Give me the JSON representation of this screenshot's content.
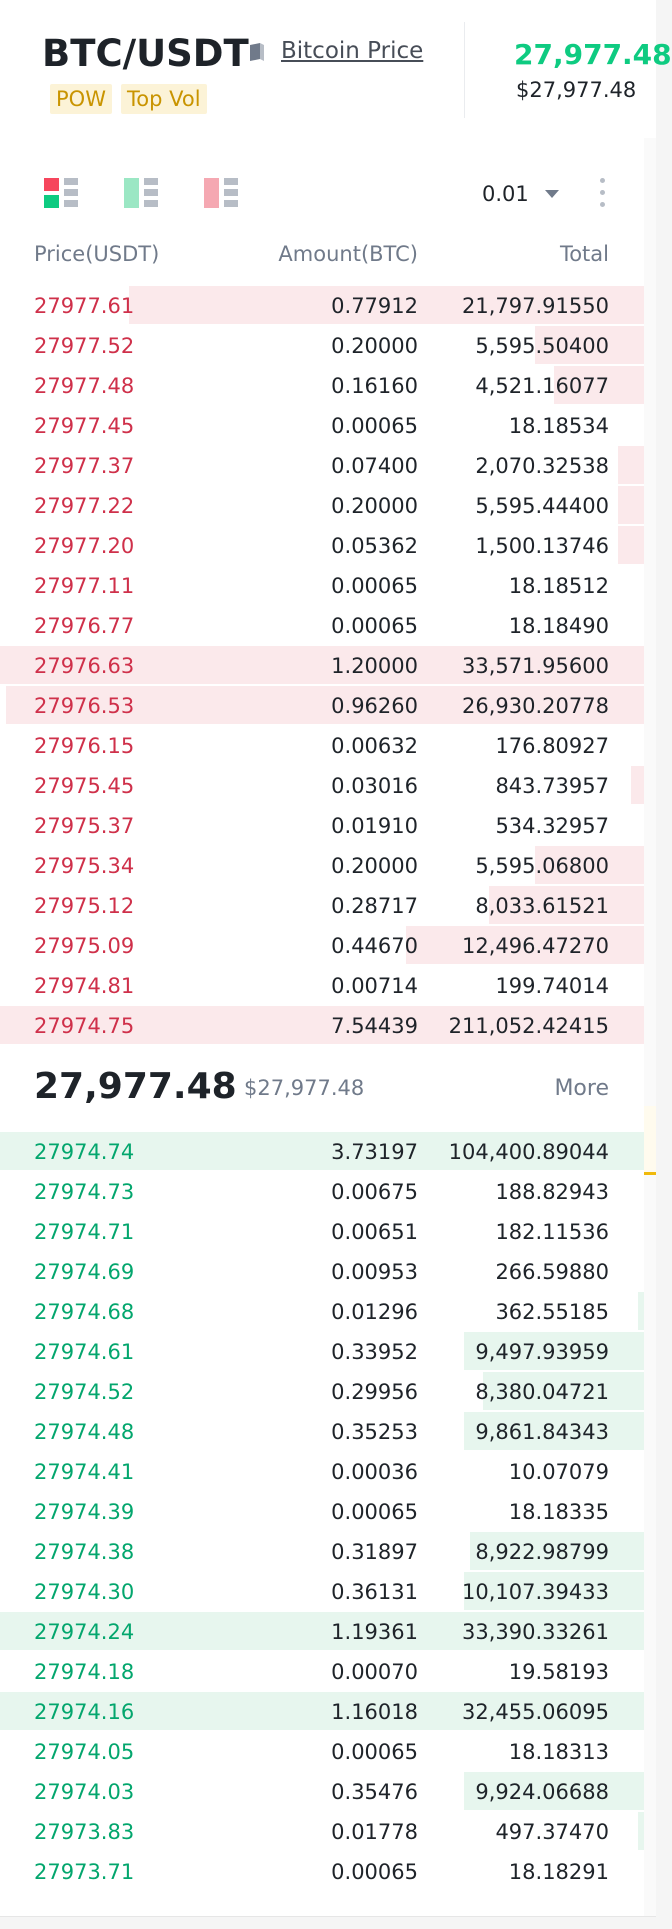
{
  "header": {
    "pair": "BTC/USDT",
    "price_link": "Bitcoin Price",
    "tags": [
      "POW",
      "Top Vol"
    ],
    "last_price": "27,977.48",
    "last_price_usd": "$27,977.48",
    "last_price_color": "#0ecb81"
  },
  "toolbar": {
    "precision": "0.01",
    "modes": [
      "both-sides-icon",
      "bids-only-icon",
      "asks-only-icon"
    ]
  },
  "columns": {
    "price": "Price(USDT)",
    "amount": "Amount(BTC)",
    "total": "Total"
  },
  "asks": [
    {
      "price": "27977.61",
      "amount": "0.77912",
      "total": "21,797.91550",
      "depth": 0.8
    },
    {
      "price": "27977.52",
      "amount": "0.20000",
      "total": "5,595.50400",
      "depth": 0.17
    },
    {
      "price": "27977.48",
      "amount": "0.16160",
      "total": "4,521.16077",
      "depth": 0.14
    },
    {
      "price": "27977.45",
      "amount": "0.00065",
      "total": "18.18534",
      "depth": 0.0
    },
    {
      "price": "27977.37",
      "amount": "0.07400",
      "total": "2,070.32538",
      "depth": 0.04
    },
    {
      "price": "27977.22",
      "amount": "0.20000",
      "total": "5,595.44400",
      "depth": 0.04
    },
    {
      "price": "27977.20",
      "amount": "0.05362",
      "total": "1,500.13746",
      "depth": 0.04
    },
    {
      "price": "27977.11",
      "amount": "0.00065",
      "total": "18.18512",
      "depth": 0.0
    },
    {
      "price": "27976.77",
      "amount": "0.00065",
      "total": "18.18490",
      "depth": 0.0
    },
    {
      "price": "27976.63",
      "amount": "1.20000",
      "total": "33,571.95600",
      "depth": 1.0
    },
    {
      "price": "27976.53",
      "amount": "0.96260",
      "total": "26,930.20778",
      "depth": 0.99
    },
    {
      "price": "27976.15",
      "amount": "0.00632",
      "total": "176.80927",
      "depth": 0.0
    },
    {
      "price": "27975.45",
      "amount": "0.03016",
      "total": "843.73957",
      "depth": 0.02
    },
    {
      "price": "27975.37",
      "amount": "0.01910",
      "total": "534.32957",
      "depth": 0.0
    },
    {
      "price": "27975.34",
      "amount": "0.20000",
      "total": "5,595.06800",
      "depth": 0.17
    },
    {
      "price": "27975.12",
      "amount": "0.28717",
      "total": "8,033.61521",
      "depth": 0.24
    },
    {
      "price": "27975.09",
      "amount": "0.44670",
      "total": "12,496.47270",
      "depth": 0.37
    },
    {
      "price": "27974.81",
      "amount": "0.00714",
      "total": "199.74014",
      "depth": 0.0
    },
    {
      "price": "27974.75",
      "amount": "7.54439",
      "total": "211,052.42415",
      "depth": 1.0
    }
  ],
  "mid": {
    "price": "27,977.48",
    "usd": "$27,977.48",
    "more_label": "More"
  },
  "bids": [
    {
      "price": "27974.74",
      "amount": "3.73197",
      "total": "104,400.89044",
      "depth": 1.0
    },
    {
      "price": "27974.73",
      "amount": "0.00675",
      "total": "188.82943",
      "depth": 0.0
    },
    {
      "price": "27974.71",
      "amount": "0.00651",
      "total": "182.11536",
      "depth": 0.0
    },
    {
      "price": "27974.69",
      "amount": "0.00953",
      "total": "266.59880",
      "depth": 0.0
    },
    {
      "price": "27974.68",
      "amount": "0.01296",
      "total": "362.55185",
      "depth": 0.01
    },
    {
      "price": "27974.61",
      "amount": "0.33952",
      "total": "9,497.93959",
      "depth": 0.28
    },
    {
      "price": "27974.52",
      "amount": "0.29956",
      "total": "8,380.04721",
      "depth": 0.25
    },
    {
      "price": "27974.48",
      "amount": "0.35253",
      "total": "9,861.84343",
      "depth": 0.28
    },
    {
      "price": "27974.41",
      "amount": "0.00036",
      "total": "10.07079",
      "depth": 0.0
    },
    {
      "price": "27974.39",
      "amount": "0.00065",
      "total": "18.18335",
      "depth": 0.0
    },
    {
      "price": "27974.38",
      "amount": "0.31897",
      "total": "8,922.98799",
      "depth": 0.27
    },
    {
      "price": "27974.30",
      "amount": "0.36131",
      "total": "10,107.39433",
      "depth": 0.28
    },
    {
      "price": "27974.24",
      "amount": "1.19361",
      "total": "33,390.33261",
      "depth": 1.0
    },
    {
      "price": "27974.18",
      "amount": "0.00070",
      "total": "19.58193",
      "depth": 0.0
    },
    {
      "price": "27974.16",
      "amount": "1.16018",
      "total": "32,455.06095",
      "depth": 1.0
    },
    {
      "price": "27974.05",
      "amount": "0.00065",
      "total": "18.18313",
      "depth": 0.0
    },
    {
      "price": "27974.03",
      "amount": "0.35476",
      "total": "9,924.06688",
      "depth": 0.28
    },
    {
      "price": "27973.83",
      "amount": "0.01778",
      "total": "497.37470",
      "depth": 0.01
    },
    {
      "price": "27973.71",
      "amount": "0.00065",
      "total": "18.18291",
      "depth": 0.0
    }
  ]
}
